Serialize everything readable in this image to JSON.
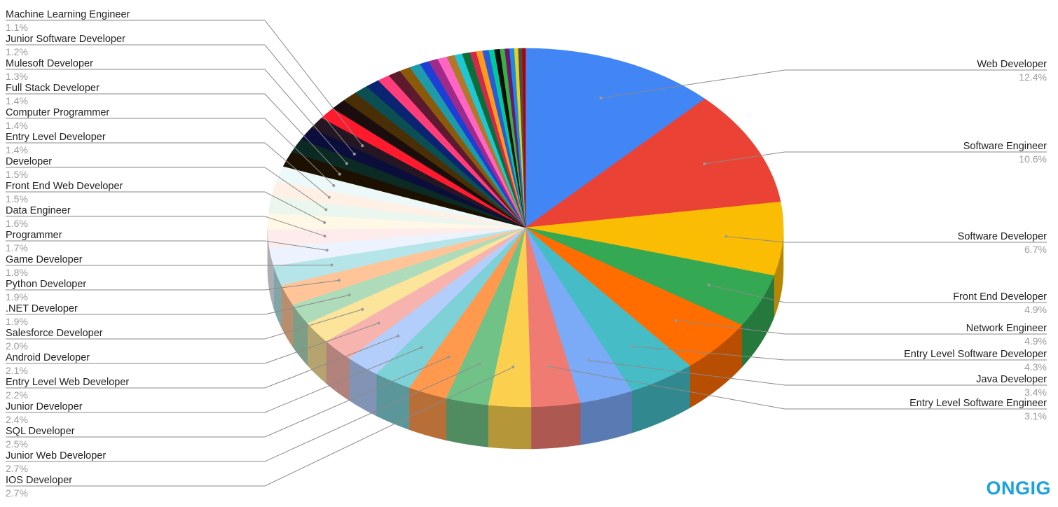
{
  "chart_data": {
    "type": "pie",
    "three_d": true,
    "legend": "labeled slices",
    "series": [
      {
        "name": "Web Developer",
        "label": "12.4%",
        "value": 12.4,
        "color": "#4285f4"
      },
      {
        "name": "Software Engineer",
        "label": "10.6%",
        "value": 10.6,
        "color": "#ea4335"
      },
      {
        "name": "Software Developer",
        "label": "6.7%",
        "value": 6.7,
        "color": "#fbbc04"
      },
      {
        "name": "Front End Developer",
        "label": "4.9%",
        "value": 4.9,
        "color": "#34a853"
      },
      {
        "name": "Network Engineer",
        "label": "4.9%",
        "value": 4.9,
        "color": "#ff6d01"
      },
      {
        "name": "Entry Level Software Developer",
        "label": "4.3%",
        "value": 4.3,
        "color": "#46bdc6"
      },
      {
        "name": "Java Developer",
        "label": "3.4%",
        "value": 3.4,
        "color": "#7baaf7"
      },
      {
        "name": "Entry Level Software Engineer",
        "label": "3.1%",
        "value": 3.1,
        "color": "#f07b72"
      },
      {
        "name": "IOS Developer",
        "label": "2.7%",
        "value": 2.7,
        "color": "#fcd04f"
      },
      {
        "name": "Junior Web Developer",
        "label": "2.7%",
        "value": 2.7,
        "color": "#71c287"
      },
      {
        "name": "SQL Developer",
        "label": "2.5%",
        "value": 2.5,
        "color": "#ff994d"
      },
      {
        "name": "Junior Developer",
        "label": "2.4%",
        "value": 2.4,
        "color": "#7ed1d7"
      },
      {
        "name": "Entry Level Web Developer",
        "label": "2.2%",
        "value": 2.2,
        "color": "#b3cefb"
      },
      {
        "name": "Android Developer",
        "label": "2.1%",
        "value": 2.1,
        "color": "#f7b4ae"
      },
      {
        "name": "Salesforce Developer",
        "label": "2.0%",
        "value": 2.0,
        "color": "#fde49b"
      },
      {
        "name": ".NET Developer",
        "label": "1.9%",
        "value": 1.9,
        "color": "#aedcba"
      },
      {
        "name": "Python Developer",
        "label": "1.9%",
        "value": 1.9,
        "color": "#ffc599"
      },
      {
        "name": "Game Developer",
        "label": "1.8%",
        "value": 1.8,
        "color": "#b5e5e8"
      },
      {
        "name": "Programmer",
        "label": "1.7%",
        "value": 1.7,
        "color": "#ecf3fe"
      },
      {
        "name": "Data Engineer",
        "label": "1.6%",
        "value": 1.6,
        "color": "#fdeceb"
      },
      {
        "name": "Front End Web Developer",
        "label": "1.5%",
        "value": 1.5,
        "color": "#fff8e6"
      },
      {
        "name": "Developer",
        "label": "1.5%",
        "value": 1.5,
        "color": "#ebf6ee"
      },
      {
        "name": "Entry Level Developer",
        "label": "1.4%",
        "value": 1.4,
        "color": "#fff0e6"
      },
      {
        "name": "Computer Programmer",
        "label": "1.4%",
        "value": 1.4,
        "color": "#edf8f9"
      },
      {
        "name": "Full Stack Developer",
        "label": "1.4%",
        "value": 1.4,
        "color": "#1c1100"
      },
      {
        "name": "Mulesoft Developer",
        "label": "1.3%",
        "value": 1.3,
        "color": "#0b2a24"
      },
      {
        "name": "Junior Software Developer",
        "label": "1.2%",
        "value": 1.2,
        "color": "#0b0d3a"
      },
      {
        "name": "Machine Learning Engineer",
        "label": "1.1%",
        "value": 1.1,
        "color": "#241622"
      },
      {
        "value": 1.1,
        "color": "#ff1a2e"
      },
      {
        "value": 1.0,
        "color": "#1a0d0d"
      },
      {
        "value": 1.0,
        "color": "#4a2e05"
      },
      {
        "value": 0.9,
        "color": "#0b4f52"
      },
      {
        "value": 0.9,
        "color": "#0a2472"
      },
      {
        "value": 0.8,
        "color": "#ff3d7a"
      },
      {
        "value": 0.8,
        "color": "#5c1a2e"
      },
      {
        "value": 0.7,
        "color": "#8a5a0a"
      },
      {
        "value": 0.7,
        "color": "#1f9aa8"
      },
      {
        "value": 0.6,
        "color": "#1e3fd6"
      },
      {
        "value": 0.6,
        "color": "#a02a8a"
      },
      {
        "value": 0.6,
        "color": "#ff66c4"
      },
      {
        "value": 0.5,
        "color": "#b3772a"
      },
      {
        "value": 0.5,
        "color": "#1fc7d4"
      },
      {
        "value": 0.5,
        "color": "#0b6e3a"
      },
      {
        "value": 0.4,
        "color": "#d02a4a"
      },
      {
        "value": 0.4,
        "color": "#ff9a1a"
      },
      {
        "value": 0.4,
        "color": "#2a5ad6"
      },
      {
        "value": 0.35,
        "color": "#00c9a0"
      },
      {
        "value": 0.35,
        "color": "#0d0d0d"
      },
      {
        "value": 0.3,
        "color": "#3ab040"
      },
      {
        "value": 0.3,
        "color": "#6b1a6b"
      },
      {
        "value": 0.3,
        "color": "#1a8ae6"
      },
      {
        "value": 0.25,
        "color": "#e6d21a"
      },
      {
        "value": 0.25,
        "color": "#4d4d4d"
      },
      {
        "value": 0.2,
        "color": "#b30000"
      }
    ]
  },
  "brand": {
    "logo_text": "ONGIG"
  }
}
